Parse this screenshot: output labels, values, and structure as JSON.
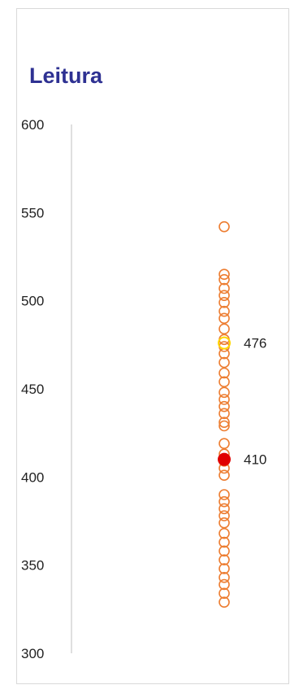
{
  "chart_data": {
    "type": "scatter",
    "title": "Leitura",
    "ylim": [
      300,
      600
    ],
    "yticks": [
      300,
      350,
      400,
      450,
      500,
      550,
      600
    ],
    "grid": false,
    "points_color": "#ed7d31",
    "points": [
      329,
      334,
      339,
      343,
      348,
      353,
      358,
      363,
      368,
      374,
      378,
      382,
      386,
      390,
      401,
      405,
      409,
      413,
      419,
      429,
      431,
      436,
      440,
      444,
      448,
      454,
      459,
      465,
      470,
      474,
      478,
      484,
      490,
      494,
      499,
      503,
      507,
      512,
      515,
      542
    ],
    "highlights": [
      {
        "value": 476,
        "label": "476",
        "color": "#ffd700",
        "filled": false
      },
      {
        "value": 410,
        "label": "410",
        "color": "#e00000",
        "filled": true
      }
    ]
  }
}
